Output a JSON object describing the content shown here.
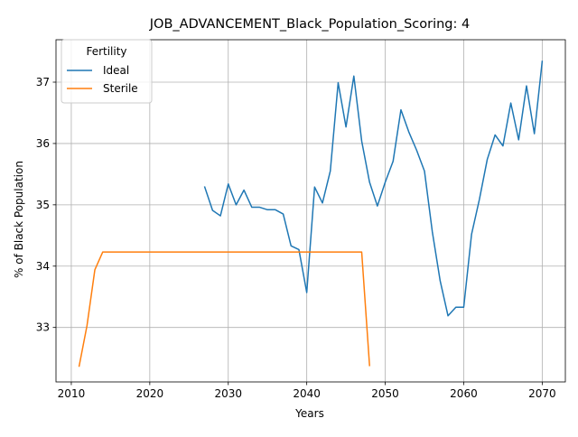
{
  "chart_data": {
    "type": "line",
    "title": "JOB_ADVANCEMENT_Black_Population_Scoring: 4",
    "xlabel": "Years",
    "ylabel": "% of Black Population",
    "xlim": [
      2008.05,
      2072.95
    ],
    "ylim": [
      32.112,
      37.692
    ],
    "xticks": [
      2010,
      2020,
      2030,
      2040,
      2050,
      2060,
      2070
    ],
    "yticks": [
      33,
      34,
      35,
      36,
      37
    ],
    "grid": true,
    "legend": {
      "title": "Fertility",
      "placement": "upper-left"
    },
    "series": [
      {
        "name": "Ideal",
        "color": "#1f77b4",
        "x": [
          2027,
          2028,
          2029,
          2030,
          2031,
          2032,
          2033,
          2034,
          2035,
          2036,
          2037,
          2038,
          2039,
          2040,
          2041,
          2042,
          2043,
          2044,
          2045,
          2046,
          2047,
          2048,
          2049,
          2050,
          2051,
          2052,
          2053,
          2054,
          2055,
          2056,
          2057,
          2058,
          2059,
          2060,
          2061,
          2062,
          2063,
          2064,
          2065,
          2066,
          2067,
          2068,
          2069,
          2070
        ],
        "y": [
          35.29,
          34.91,
          34.82,
          35.34,
          35.0,
          35.24,
          34.96,
          34.96,
          34.92,
          34.92,
          34.85,
          34.33,
          34.27,
          33.57,
          35.29,
          35.03,
          35.55,
          36.99,
          36.27,
          37.1,
          36.04,
          35.37,
          34.98,
          35.37,
          35.71,
          36.55,
          36.19,
          35.89,
          35.55,
          34.56,
          33.76,
          33.19,
          33.33,
          33.33,
          34.52,
          35.09,
          35.74,
          36.14,
          35.96,
          36.66,
          36.06,
          36.94,
          36.16,
          37.34
        ]
      },
      {
        "name": "Sterile",
        "color": "#ff7f0e",
        "x": [
          2011,
          2012,
          2013,
          2014,
          2015,
          2016,
          2017,
          2018,
          2019,
          2020,
          2021,
          2022,
          2023,
          2024,
          2025,
          2026,
          2027,
          2028,
          2029,
          2030,
          2031,
          2032,
          2033,
          2034,
          2035,
          2036,
          2037,
          2038,
          2039,
          2040,
          2041,
          2042,
          2043,
          2044,
          2045,
          2046,
          2047,
          2048
        ],
        "y": [
          32.37,
          33.03,
          33.94,
          34.23,
          34.23,
          34.23,
          34.23,
          34.23,
          34.23,
          34.23,
          34.23,
          34.23,
          34.23,
          34.23,
          34.23,
          34.23,
          34.23,
          34.23,
          34.23,
          34.23,
          34.23,
          34.23,
          34.23,
          34.23,
          34.23,
          34.23,
          34.23,
          34.23,
          34.23,
          34.23,
          34.23,
          34.23,
          34.23,
          34.23,
          34.23,
          34.23,
          34.23,
          32.38
        ]
      }
    ]
  }
}
